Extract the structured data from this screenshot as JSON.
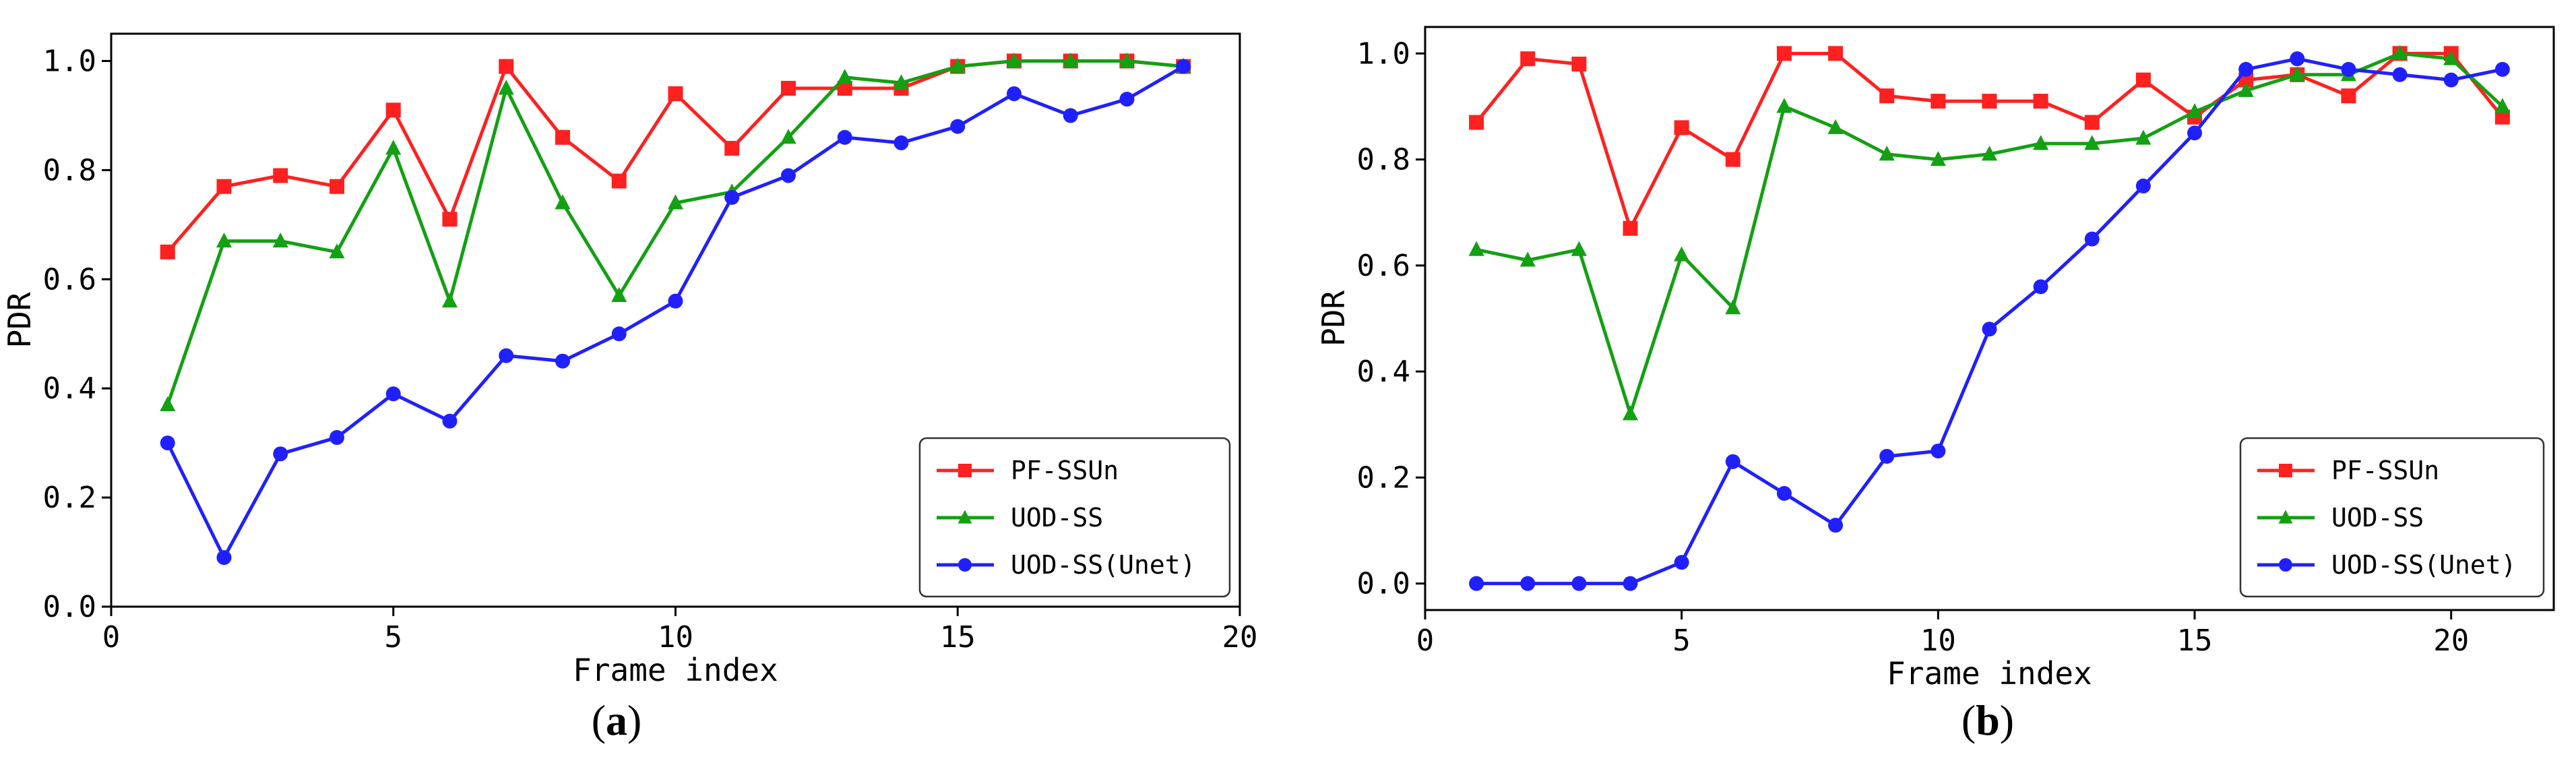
{
  "chart_data": [
    {
      "type": "line",
      "caption": "(a)",
      "caption_letter": "a",
      "xlabel": "Frame index",
      "ylabel": "PDR",
      "xlim": [
        0,
        20
      ],
      "ylim": [
        0,
        1.05
      ],
      "xticks": [
        0,
        5,
        10,
        15,
        20
      ],
      "xtick_labels": [
        "0",
        "5",
        "10",
        "15",
        "20"
      ],
      "yticks": [
        0,
        0.2,
        0.4,
        0.6,
        0.8,
        1.0
      ],
      "ytick_labels": [
        "0.0",
        "0.2",
        "0.4",
        "0.6",
        "0.8",
        "1.0"
      ],
      "legend_position": "lower-right",
      "x": [
        1,
        2,
        3,
        4,
        5,
        6,
        7,
        8,
        9,
        10,
        11,
        12,
        13,
        14,
        15,
        16,
        17,
        18,
        19
      ],
      "series": [
        {
          "name": "PF-SSUn",
          "color": "#ff2020",
          "marker": "square",
          "values": [
            0.65,
            0.77,
            0.79,
            0.77,
            0.91,
            0.71,
            0.99,
            0.86,
            0.78,
            0.94,
            0.84,
            0.95,
            0.95,
            0.95,
            0.99,
            1.0,
            1.0,
            1.0,
            0.99
          ]
        },
        {
          "name": "UOD-SS",
          "color": "#13a013",
          "marker": "triangle",
          "values": [
            0.37,
            0.67,
            0.67,
            0.65,
            0.84,
            0.56,
            0.95,
            0.74,
            0.57,
            0.74,
            0.76,
            0.86,
            0.97,
            0.96,
            0.99,
            1.0,
            1.0,
            1.0,
            0.99
          ]
        },
        {
          "name": "UOD-SS(Unet)",
          "color": "#2020ff",
          "marker": "circle",
          "values": [
            0.3,
            0.09,
            0.28,
            0.31,
            0.39,
            0.34,
            0.46,
            0.45,
            0.5,
            0.56,
            0.75,
            0.79,
            0.86,
            0.85,
            0.88,
            0.94,
            0.9,
            0.93,
            0.99
          ]
        }
      ]
    },
    {
      "type": "line",
      "caption": "(b)",
      "caption_letter": "b",
      "xlabel": "Frame index",
      "ylabel": "PDR",
      "xlim": [
        0,
        22
      ],
      "ylim": [
        -0.05,
        1.05
      ],
      "xticks": [
        0,
        5,
        10,
        15,
        20
      ],
      "xtick_labels": [
        "0",
        "5",
        "10",
        "15",
        "20"
      ],
      "yticks": [
        0,
        0.2,
        0.4,
        0.6,
        0.8,
        1.0
      ],
      "ytick_labels": [
        "0.0",
        "0.2",
        "0.4",
        "0.6",
        "0.8",
        "1.0"
      ],
      "legend_position": "lower-right",
      "x": [
        1,
        2,
        3,
        4,
        5,
        6,
        7,
        8,
        9,
        10,
        11,
        12,
        13,
        14,
        15,
        16,
        17,
        18,
        19,
        20,
        21
      ],
      "series": [
        {
          "name": "PF-SSUn",
          "color": "#ff2020",
          "marker": "square",
          "values": [
            0.87,
            0.99,
            0.98,
            0.67,
            0.86,
            0.8,
            1.0,
            1.0,
            0.92,
            0.91,
            0.91,
            0.91,
            0.87,
            0.95,
            0.88,
            0.95,
            0.96,
            0.92,
            1.0,
            1.0,
            0.88
          ]
        },
        {
          "name": "UOD-SS",
          "color": "#13a013",
          "marker": "triangle",
          "values": [
            0.63,
            0.61,
            0.63,
            0.32,
            0.62,
            0.52,
            0.9,
            0.86,
            0.81,
            0.8,
            0.81,
            0.83,
            0.83,
            0.84,
            0.89,
            0.93,
            0.96,
            0.96,
            1.0,
            0.99,
            0.9
          ]
        },
        {
          "name": "UOD-SS(Unet)",
          "color": "#2020ff",
          "marker": "circle",
          "values": [
            0.0,
            0.0,
            0.0,
            0.0,
            0.04,
            0.23,
            0.17,
            0.11,
            0.24,
            0.25,
            0.48,
            0.56,
            0.65,
            0.75,
            0.85,
            0.97,
            0.99,
            0.97,
            0.96,
            0.95,
            0.97
          ]
        }
      ]
    }
  ]
}
